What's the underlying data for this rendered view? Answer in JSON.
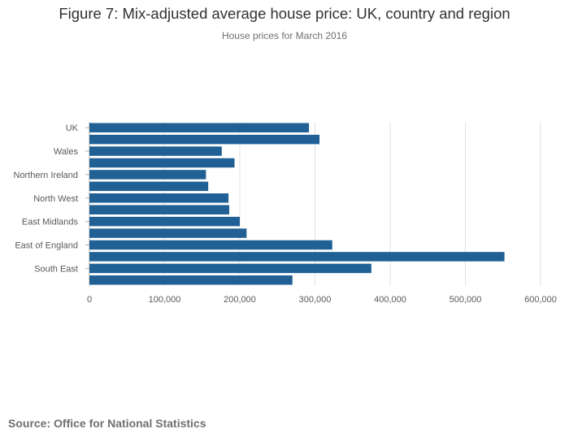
{
  "title": "Figure 7: Mix-adjusted average house price: UK, country and region",
  "subtitle": "House prices for March 2016",
  "source": "Source: Office for National Statistics",
  "colors": {
    "bar": "#206095",
    "grid": "#e2e2e2",
    "axis": "#b0b0b0"
  },
  "chart_data": {
    "type": "bar",
    "orientation": "horizontal",
    "title": "Figure 7: Mix-adjusted average house price: UK, country and region",
    "subtitle": "House prices for March 2016",
    "categories": [
      "UK",
      "",
      "Wales",
      "",
      "Northern Ireland",
      "",
      "North West",
      "",
      "East Midlands",
      "",
      "East of England",
      "",
      "South East",
      ""
    ],
    "values": [
      292000,
      306000,
      176000,
      193000,
      155000,
      158000,
      185000,
      186000,
      200000,
      209000,
      323000,
      552000,
      375000,
      270000
    ],
    "xlim": [
      0,
      600000
    ],
    "xticks": [
      0,
      100000,
      200000,
      300000,
      400000,
      500000,
      600000
    ],
    "xtick_labels": [
      "0",
      "100,000",
      "200,000",
      "300,000",
      "400,000",
      "500,000",
      "600,000"
    ],
    "xlabel": "",
    "ylabel": "",
    "grid": true,
    "legend": "none"
  }
}
